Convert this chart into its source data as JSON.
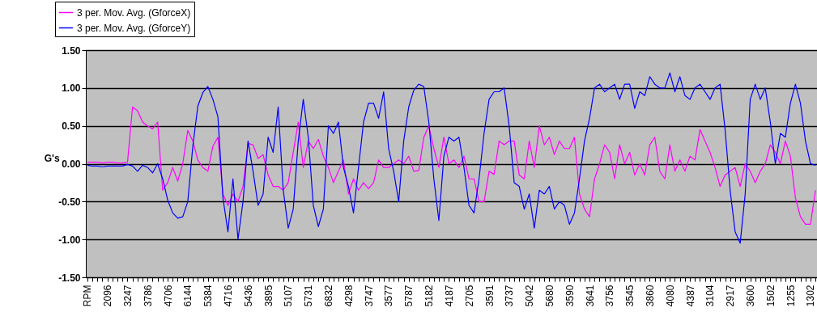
{
  "chart_data": {
    "type": "line",
    "ylabel": "G's",
    "categories": [
      "RPM",
      null,
      null,
      null,
      "2096",
      null,
      null,
      null,
      "3247",
      null,
      null,
      null,
      "3786",
      null,
      null,
      null,
      "4706",
      null,
      null,
      null,
      "6144",
      null,
      null,
      null,
      "5384",
      null,
      null,
      null,
      "4716",
      null,
      null,
      null,
      "5436",
      null,
      null,
      null,
      "3895",
      null,
      null,
      null,
      "5107",
      null,
      null,
      null,
      "5731",
      null,
      null,
      null,
      "6832",
      null,
      null,
      null,
      "4298",
      null,
      null,
      null,
      "3747",
      null,
      null,
      null,
      "3577",
      null,
      null,
      null,
      "5787",
      null,
      null,
      null,
      "5182",
      null,
      null,
      null,
      "4187",
      null,
      null,
      null,
      "2705",
      null,
      null,
      null,
      "3591",
      null,
      null,
      null,
      "3737",
      null,
      null,
      null,
      "5042",
      null,
      null,
      null,
      "5680",
      null,
      null,
      null,
      "3590",
      null,
      null,
      null,
      "3641",
      null,
      null,
      null,
      "3756",
      null,
      null,
      null,
      "3545",
      null,
      null,
      null,
      "3860",
      null,
      null,
      null,
      "4080",
      null,
      null,
      null,
      "4387",
      null,
      null,
      null,
      "3104",
      null,
      null,
      null,
      "2917",
      null,
      null,
      null,
      "3600",
      null,
      null,
      null,
      "1502",
      null,
      null,
      null,
      "1255",
      null,
      null,
      null,
      "1302",
      null
    ],
    "series": [
      {
        "name": "3 per. Mov. Avg. (GforceX)",
        "color": "#ff00ff",
        "values": [
          0.02,
          0.02,
          0.02,
          0.01,
          0.02,
          0.02,
          0.01,
          0.01,
          0.02,
          0.75,
          0.7,
          0.55,
          0.5,
          0.46,
          0.55,
          -0.35,
          -0.25,
          -0.05,
          -0.23,
          0.0,
          0.44,
          0.3,
          0.05,
          -0.05,
          -0.1,
          0.23,
          0.35,
          -0.4,
          -0.55,
          -0.4,
          -0.5,
          -0.3,
          0.27,
          0.25,
          0.07,
          0.12,
          -0.15,
          -0.3,
          -0.3,
          -0.35,
          -0.25,
          0.15,
          0.55,
          -0.05,
          0.3,
          0.2,
          0.32,
          0.1,
          -0.05,
          -0.25,
          -0.1,
          0.05,
          -0.4,
          -0.2,
          -0.35,
          -0.25,
          -0.33,
          -0.25,
          0.05,
          -0.05,
          -0.05,
          0.0,
          0.05,
          0.0,
          0.1,
          -0.1,
          -0.09,
          0.35,
          0.5,
          0.2,
          -0.05,
          0.35,
          0.0,
          0.05,
          -0.05,
          0.1,
          -0.2,
          -0.2,
          -0.5,
          -0.5,
          -0.1,
          -0.14,
          0.3,
          0.25,
          0.3,
          0.3,
          -0.15,
          -0.2,
          0.3,
          -0.05,
          0.5,
          0.25,
          0.35,
          0.12,
          0.3,
          0.2,
          0.2,
          0.35,
          -0.4,
          -0.6,
          -0.7,
          -0.2,
          0.0,
          0.25,
          0.15,
          -0.2,
          0.25,
          0.0,
          0.15,
          -0.15,
          0.0,
          -0.15,
          0.25,
          0.35,
          -0.1,
          -0.2,
          0.25,
          -0.1,
          0.05,
          -0.1,
          0.1,
          0.05,
          0.45,
          0.3,
          0.15,
          -0.05,
          -0.3,
          -0.15,
          -0.1,
          -0.05,
          -0.3,
          0.0,
          -0.1,
          -0.25,
          -0.1,
          0.0,
          0.25,
          0.15,
          0.0,
          0.3,
          0.1,
          -0.45,
          -0.7,
          -0.8,
          -0.8,
          -0.35
        ]
      },
      {
        "name": "3 per. Mov. Avg. (GforceY)",
        "color": "#0000ff",
        "values": [
          -0.02,
          -0.03,
          -0.03,
          -0.04,
          -0.03,
          -0.03,
          -0.03,
          -0.03,
          -0.01,
          -0.03,
          -0.1,
          -0.02,
          -0.05,
          -0.12,
          0.0,
          -0.2,
          -0.48,
          -0.65,
          -0.72,
          -0.7,
          -0.5,
          0.23,
          0.76,
          0.94,
          1.02,
          0.85,
          0.62,
          -0.45,
          -0.9,
          -0.2,
          -1.0,
          -0.5,
          0.3,
          -0.1,
          -0.55,
          -0.4,
          0.35,
          0.15,
          0.75,
          -0.34,
          -0.85,
          -0.6,
          0.3,
          0.85,
          0.35,
          -0.55,
          -0.83,
          -0.6,
          0.5,
          0.4,
          0.55,
          -0.05,
          -0.3,
          -0.65,
          -0.05,
          0.55,
          0.8,
          0.8,
          0.6,
          0.95,
          0.2,
          -0.1,
          -0.5,
          0.3,
          0.75,
          0.97,
          1.05,
          1.02,
          0.55,
          -0.2,
          -0.75,
          0.1,
          0.35,
          0.3,
          0.35,
          -0.05,
          -0.55,
          -0.65,
          -0.2,
          0.4,
          0.85,
          0.95,
          0.95,
          1.0,
          0.5,
          -0.25,
          -0.3,
          -0.6,
          -0.4,
          -0.85,
          -0.35,
          -0.4,
          -0.3,
          -0.6,
          -0.5,
          -0.55,
          -0.8,
          -0.65,
          -0.2,
          0.3,
          0.6,
          1.0,
          1.05,
          0.95,
          1.0,
          1.05,
          0.85,
          1.05,
          1.05,
          0.73,
          0.95,
          0.9,
          1.15,
          1.05,
          1.0,
          1.0,
          1.2,
          0.95,
          1.15,
          0.9,
          0.85,
          1.0,
          1.05,
          0.95,
          0.85,
          1.0,
          1.05,
          0.45,
          -0.35,
          -0.9,
          -1.05,
          -0.4,
          0.85,
          1.05,
          0.85,
          1.0,
          0.55,
          0.0,
          0.4,
          0.35,
          0.8,
          1.05,
          0.8,
          0.3,
          0.0,
          -0.02
        ]
      }
    ],
    "ylim": [
      -1.5,
      1.5
    ],
    "yticks": [
      {
        "value": -1.5,
        "label": "-1.50"
      },
      {
        "value": -1,
        "label": "-1.00"
      },
      {
        "value": -0.5,
        "label": "-0.50"
      },
      {
        "value": 0,
        "label": "0.00"
      },
      {
        "value": 0.5,
        "label": "0.50"
      },
      {
        "value": 1,
        "label": "1.00"
      },
      {
        "value": 1.5,
        "label": "1.50"
      }
    ],
    "grid": "y",
    "legend": "top left",
    "marker": "none",
    "line_style": "solid"
  }
}
